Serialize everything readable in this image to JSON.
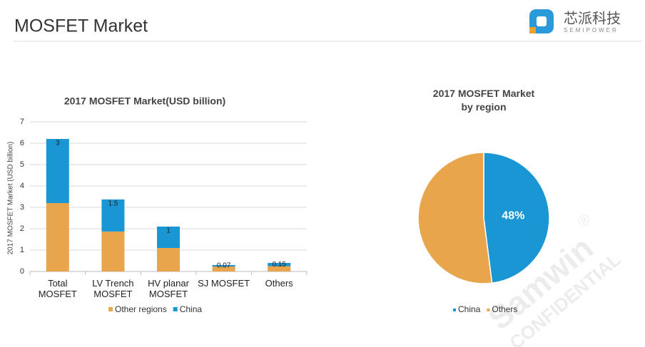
{
  "header": {
    "title": "MOSFET Market",
    "logo_text": "芯派科技",
    "logo_subtext": "SEMIPOWER"
  },
  "watermark": {
    "text": "Samwin",
    "mark": "®",
    "subtext": "CONFIDENTIAL"
  },
  "chart_data": [
    {
      "type": "bar",
      "stacked": true,
      "title": "2017 MOSFET Market(USD billion)",
      "y_label": "2017  MOSFET Market  (USD billion)",
      "categories": [
        "Total MOSFET",
        "LV Trench MOSFET",
        "HV planar MOSFET",
        "SJ MOSFET",
        "Others"
      ],
      "series": [
        {
          "name": "Other regions",
          "color": "#E8A54B",
          "values": [
            3.2,
            1.87,
            1.1,
            0.23,
            0.25
          ]
        },
        {
          "name": "China",
          "color": "#1A96D4",
          "values": [
            3,
            1.5,
            1,
            0.07,
            0.15
          ],
          "show_labels": true
        }
      ],
      "ylim": [
        0,
        7
      ],
      "yticks": [
        0,
        1,
        2,
        3,
        4,
        5,
        6,
        7
      ],
      "grid": true,
      "legend": "bottom"
    },
    {
      "type": "pie",
      "title": "2017 MOSFET Market by region",
      "categories": [
        "China",
        "Others"
      ],
      "values": [
        48,
        52
      ],
      "value_labels": [
        "48%",
        null
      ],
      "colors": [
        "#1A96D4",
        "#E8A54B"
      ],
      "legend": "bottom"
    }
  ]
}
